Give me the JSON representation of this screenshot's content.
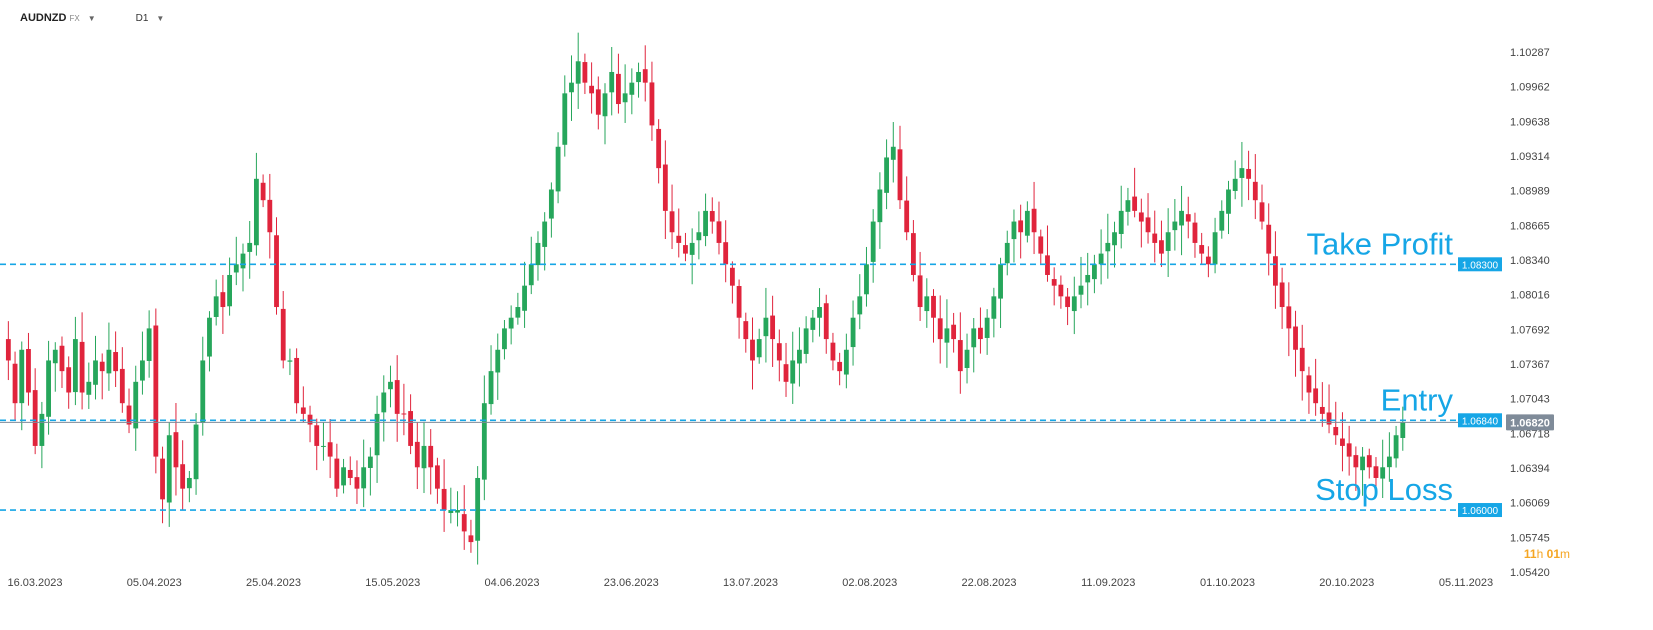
{
  "toolbar": {
    "symbol": "AUDNZD",
    "exchange": "FX",
    "timeframe": "D1",
    "dropdown_icon": "caret-down-icon"
  },
  "countdown": {
    "hours": "11",
    "h": "h",
    "minutes": "01",
    "m": "m"
  },
  "colors": {
    "up": "#26a65b",
    "down": "#e0243c",
    "level_line": "#16a6e6",
    "price_line": "#7f8b99",
    "price_tag": "#7f8b99",
    "countdown": "#f5a623"
  },
  "chart_data": {
    "type": "candlestick",
    "symbol": "AUDNZD",
    "timeframe": "D1",
    "y_ticks": [
      "1.10287",
      "1.09962",
      "1.09638",
      "1.09314",
      "1.08989",
      "1.08665",
      "1.08340",
      "1.08016",
      "1.07692",
      "1.07367",
      "1.07043",
      "1.06718",
      "1.06394",
      "1.06069",
      "1.05745",
      "1.05420"
    ],
    "x_ticks": [
      "16.03.2023",
      "05.04.2023",
      "25.04.2023",
      "15.05.2023",
      "04.06.2023",
      "23.06.2023",
      "13.07.2023",
      "02.08.2023",
      "22.08.2023",
      "11.09.2023",
      "01.10.2023",
      "20.10.2023",
      "05.11.2023"
    ],
    "ylim": [
      1.0542,
      1.10287
    ],
    "current_price": "1.06820",
    "levels": [
      {
        "label": "Take Profit",
        "price": 1.083,
        "tag": "1.08300"
      },
      {
        "label": "Entry",
        "price": 1.0684,
        "tag": "1.06840"
      },
      {
        "label": "Stop Loss",
        "price": 1.06,
        "tag": "1.06000"
      }
    ],
    "closes": [
      1.074,
      1.07,
      1.075,
      1.071,
      1.066,
      1.069,
      1.074,
      1.075,
      1.073,
      1.071,
      1.076,
      1.071,
      1.072,
      1.074,
      1.073,
      1.075,
      1.073,
      1.07,
      1.068,
      1.072,
      1.074,
      1.077,
      1.065,
      1.061,
      1.067,
      1.064,
      1.062,
      1.063,
      1.068,
      1.074,
      1.078,
      1.08,
      1.079,
      1.082,
      1.083,
      1.084,
      1.085,
      1.091,
      1.089,
      1.086,
      1.079,
      1.074,
      1.074,
      1.07,
      1.069,
      1.068,
      1.066,
      1.066,
      1.065,
      1.062,
      1.064,
      1.063,
      1.062,
      1.064,
      1.065,
      1.069,
      1.071,
      1.072,
      1.069,
      1.069,
      1.066,
      1.064,
      1.066,
      1.064,
      1.062,
      1.06,
      1.06,
      1.06,
      1.058,
      1.057,
      1.063,
      1.07,
      1.073,
      1.075,
      1.077,
      1.078,
      1.079,
      1.081,
      1.083,
      1.085,
      1.087,
      1.09,
      1.094,
      1.099,
      1.1,
      1.102,
      1.1,
      1.099,
      1.097,
      1.099,
      1.101,
      1.098,
      1.099,
      1.1,
      1.101,
      1.1,
      1.096,
      1.092,
      1.088,
      1.086,
      1.085,
      1.084,
      1.085,
      1.086,
      1.088,
      1.087,
      1.085,
      1.083,
      1.081,
      1.078,
      1.076,
      1.074,
      1.076,
      1.078,
      1.076,
      1.074,
      1.072,
      1.074,
      1.075,
      1.077,
      1.078,
      1.079,
      1.076,
      1.074,
      1.073,
      1.075,
      1.078,
      1.08,
      1.083,
      1.087,
      1.09,
      1.093,
      1.094,
      1.089,
      1.086,
      1.082,
      1.079,
      1.08,
      1.078,
      1.076,
      1.077,
      1.076,
      1.073,
      1.075,
      1.077,
      1.076,
      1.078,
      1.08,
      1.083,
      1.085,
      1.087,
      1.086,
      1.088,
      1.086,
      1.084,
      1.082,
      1.081,
      1.08,
      1.079,
      1.08,
      1.081,
      1.082,
      1.083,
      1.084,
      1.085,
      1.086,
      1.088,
      1.089,
      1.088,
      1.087,
      1.086,
      1.085,
      1.084,
      1.086,
      1.087,
      1.088,
      1.087,
      1.085,
      1.084,
      1.083,
      1.086,
      1.088,
      1.09,
      1.091,
      1.092,
      1.091,
      1.089,
      1.087,
      1.084,
      1.081,
      1.079,
      1.077,
      1.075,
      1.073,
      1.071,
      1.07,
      1.069,
      1.068,
      1.067,
      1.066,
      1.065,
      1.064,
      1.065,
      1.064,
      1.063,
      1.064,
      1.065,
      1.067,
      1.0682
    ],
    "extra_x_slots": 14
  }
}
